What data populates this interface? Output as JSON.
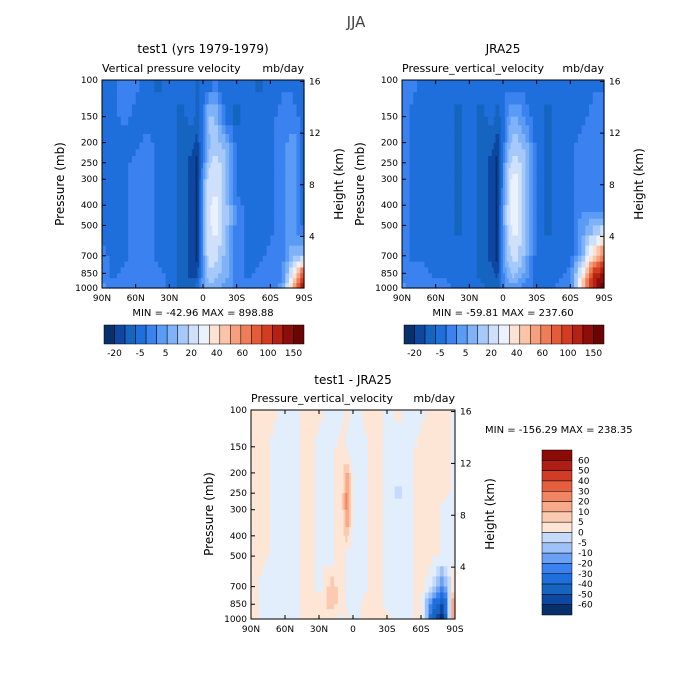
{
  "suptitle": "JJA",
  "cmap_abs": [
    "#08306b",
    "#0d47a1",
    "#1565c0",
    "#1e6fdc",
    "#3b82f0",
    "#5a9bf5",
    "#7fb2f7",
    "#a7c9fa",
    "#cfe0fb",
    "#ecf2fd",
    "#fde2d3",
    "#fbc3a8",
    "#f6a07f",
    "#ef7d57",
    "#e45b38",
    "#d23d22",
    "#b42214",
    "#8e0d0a",
    "#6a0505"
  ],
  "cmap_diff": [
    "#08306b",
    "#0d47a1",
    "#1565c0",
    "#1e6fdc",
    "#3b82f0",
    "#6ba1f5",
    "#9ec1f8",
    "#c6dbfb",
    "#e3eefd",
    "#fde6d6",
    "#fbcbb1",
    "#f7a98a",
    "#f08463",
    "#e55f3f",
    "#d03c24",
    "#ad1f14",
    "#8a0a08"
  ],
  "chart_data": [
    {
      "type": "heatmap",
      "id": "model",
      "title": "test1 (yrs 1979-1979)",
      "subtitle_left": "Vertical pressure velocity",
      "subtitle_right": "mb/day",
      "ylabel": "Pressure (mb)",
      "y2label": "Height (km)",
      "x_ticks": [
        "90N",
        "60N",
        "30N",
        "0",
        "30S",
        "60S",
        "90S"
      ],
      "y_ticks": [
        100,
        150,
        200,
        250,
        300,
        400,
        500,
        700,
        850,
        1000
      ],
      "y2_ticks": [
        16,
        12,
        8,
        4
      ],
      "stats": "MIN = -42.96   MAX = 898.88",
      "colorbar_labels": [
        "-20",
        "-5",
        "5",
        "20",
        "40",
        "60",
        "100",
        "150"
      ],
      "colormap": "abs",
      "field": {
        "lats": [
          90,
          80,
          70,
          60,
          50,
          40,
          30,
          20,
          10,
          5,
          0,
          -5,
          -10,
          -20,
          -30,
          -40,
          -50,
          -60,
          -70,
          -80,
          -90
        ],
        "levels": [
          100,
          150,
          200,
          250,
          300,
          400,
          500,
          700,
          850,
          1000
        ],
        "values": [
          [
            3,
            3,
            4,
            4,
            3,
            2,
            3,
            3,
            3,
            2,
            3,
            2,
            3,
            3,
            3,
            3,
            2,
            3,
            3,
            3,
            3
          ],
          [
            3,
            3,
            4,
            3,
            3,
            3,
            3,
            2,
            3,
            2,
            3,
            7,
            7,
            3,
            2,
            3,
            3,
            3,
            4,
            4,
            3
          ],
          [
            3,
            3,
            3,
            3,
            4,
            3,
            3,
            2,
            2,
            1,
            4,
            6,
            7,
            6,
            3,
            3,
            3,
            3,
            4,
            5,
            3
          ],
          [
            3,
            3,
            3,
            4,
            4,
            3,
            3,
            2,
            1,
            0,
            4,
            7,
            8,
            7,
            3,
            3,
            3,
            3,
            4,
            5,
            3
          ],
          [
            3,
            3,
            3,
            4,
            4,
            3,
            3,
            2,
            1,
            0,
            5,
            8,
            8,
            7,
            3,
            3,
            3,
            3,
            4,
            5,
            3
          ],
          [
            3,
            3,
            3,
            4,
            4,
            3,
            3,
            2,
            1,
            0,
            5,
            8,
            9,
            7,
            4,
            3,
            3,
            3,
            4,
            5,
            3
          ],
          [
            3,
            3,
            3,
            4,
            4,
            3,
            3,
            2,
            1,
            0,
            5,
            8,
            9,
            7,
            4,
            3,
            3,
            3,
            4,
            5,
            3
          ],
          [
            4,
            3,
            3,
            4,
            4,
            3,
            3,
            2,
            1,
            0,
            5,
            8,
            8,
            6,
            4,
            3,
            3,
            4,
            4,
            6,
            7
          ],
          [
            4,
            3,
            4,
            4,
            4,
            4,
            3,
            2,
            1,
            1,
            5,
            7,
            7,
            6,
            4,
            3,
            4,
            4,
            4,
            9,
            15
          ],
          [
            5,
            4,
            4,
            4,
            4,
            4,
            3,
            2,
            2,
            3,
            5,
            6,
            6,
            5,
            4,
            4,
            4,
            4,
            5,
            11,
            18
          ]
        ]
      }
    },
    {
      "type": "heatmap",
      "id": "obs",
      "title": "JRA25",
      "subtitle_left": "Pressure_vertical_velocity",
      "subtitle_right": "mb/day",
      "ylabel": "Pressure (mb)",
      "y2label": "Height (km)",
      "x_ticks": [
        "90N",
        "60N",
        "30N",
        "0",
        "30S",
        "60S",
        "90S"
      ],
      "y_ticks": [
        100,
        150,
        200,
        250,
        300,
        400,
        500,
        700,
        850,
        1000
      ],
      "y2_ticks": [
        16,
        12,
        8,
        4
      ],
      "stats": "MIN = -59.81   MAX = 237.60",
      "colorbar_labels": [
        "-20",
        "-5",
        "5",
        "20",
        "40",
        "60",
        "100",
        "150"
      ],
      "colormap": "abs",
      "field": {
        "lats": [
          90,
          80,
          70,
          60,
          50,
          40,
          30,
          20,
          10,
          5,
          0,
          -5,
          -10,
          -20,
          -30,
          -40,
          -50,
          -60,
          -70,
          -80,
          -90
        ],
        "levels": [
          100,
          150,
          200,
          250,
          300,
          400,
          500,
          700,
          850,
          1000
        ],
        "values": [
          [
            4,
            4,
            3,
            3,
            3,
            3,
            3,
            3,
            3,
            3,
            3,
            3,
            3,
            3,
            3,
            3,
            3,
            3,
            3,
            3,
            3
          ],
          [
            4,
            3,
            3,
            3,
            3,
            2,
            3,
            2,
            3,
            2,
            3,
            5,
            6,
            4,
            3,
            2,
            3,
            3,
            3,
            4,
            4
          ],
          [
            4,
            3,
            3,
            3,
            3,
            2,
            3,
            2,
            2,
            1,
            3,
            6,
            7,
            6,
            3,
            2,
            3,
            3,
            4,
            4,
            4
          ],
          [
            4,
            3,
            3,
            3,
            3,
            2,
            3,
            2,
            1,
            0,
            4,
            7,
            8,
            7,
            3,
            2,
            3,
            3,
            4,
            4,
            4
          ],
          [
            4,
            3,
            3,
            3,
            3,
            2,
            3,
            2,
            1,
            0,
            4,
            8,
            9,
            7,
            3,
            2,
            3,
            3,
            4,
            4,
            4
          ],
          [
            4,
            3,
            3,
            3,
            3,
            2,
            3,
            2,
            1,
            0,
            5,
            8,
            9,
            7,
            3,
            2,
            3,
            3,
            4,
            4,
            4
          ],
          [
            4,
            3,
            3,
            3,
            3,
            2,
            3,
            2,
            1,
            0,
            5,
            8,
            9,
            7,
            3,
            2,
            3,
            3,
            5,
            6,
            7
          ],
          [
            4,
            3,
            3,
            3,
            3,
            3,
            3,
            2,
            1,
            0,
            5,
            7,
            8,
            6,
            3,
            3,
            3,
            3,
            6,
            10,
            13
          ],
          [
            4,
            4,
            4,
            3,
            3,
            3,
            3,
            2,
            2,
            1,
            4,
            6,
            7,
            5,
            3,
            3,
            3,
            4,
            9,
            15,
            17
          ],
          [
            5,
            4,
            4,
            4,
            4,
            3,
            3,
            3,
            2,
            2,
            4,
            5,
            5,
            4,
            3,
            3,
            4,
            4,
            10,
            16,
            18
          ]
        ]
      }
    },
    {
      "type": "heatmap",
      "id": "diff",
      "title": "test1 - JRA25",
      "subtitle_left": "Pressure_vertical_velocity",
      "subtitle_right": "mb/day",
      "ylabel": "Pressure (mb)",
      "y2label": "Height (km)",
      "x_ticks": [
        "90N",
        "60N",
        "30N",
        "0",
        "30S",
        "60S",
        "90S"
      ],
      "y_ticks": [
        100,
        150,
        200,
        250,
        300,
        400,
        500,
        700,
        850,
        1000
      ],
      "y2_ticks": [
        16,
        12,
        8,
        4
      ],
      "stats": "MIN = -156.29   MAX = 238.35",
      "colorbar_labels": [
        "60",
        "50",
        "40",
        "30",
        "20",
        "10",
        "5",
        "0",
        "-5",
        "-10",
        "-20",
        "-30",
        "-40",
        "-50",
        "-60"
      ],
      "colormap": "diff",
      "field": {
        "lats": [
          90,
          80,
          70,
          60,
          50,
          40,
          30,
          20,
          10,
          5,
          0,
          -5,
          -10,
          -20,
          -30,
          -40,
          -50,
          -60,
          -70,
          -80,
          -90
        ],
        "levels": [
          100,
          150,
          200,
          250,
          300,
          400,
          500,
          700,
          850,
          1000
        ],
        "values": [
          [
            9,
            9,
            9,
            8,
            8,
            9,
            9,
            8,
            8,
            9,
            8,
            8,
            9,
            9,
            8,
            9,
            8,
            8,
            9,
            9,
            8
          ],
          [
            9,
            9,
            8,
            8,
            8,
            9,
            8,
            8,
            9,
            8,
            8,
            8,
            8,
            9,
            8,
            8,
            8,
            9,
            9,
            9,
            8
          ],
          [
            9,
            9,
            8,
            8,
            8,
            9,
            8,
            8,
            9,
            11,
            8,
            8,
            8,
            9,
            8,
            8,
            8,
            9,
            9,
            9,
            8
          ],
          [
            9,
            9,
            8,
            8,
            8,
            9,
            8,
            8,
            9,
            12,
            8,
            8,
            8,
            9,
            8,
            7,
            8,
            9,
            9,
            9,
            8
          ],
          [
            9,
            9,
            8,
            8,
            8,
            9,
            8,
            8,
            9,
            12,
            8,
            8,
            8,
            9,
            8,
            8,
            8,
            9,
            9,
            8,
            8
          ],
          [
            9,
            9,
            8,
            8,
            8,
            9,
            8,
            8,
            9,
            10,
            8,
            8,
            8,
            9,
            8,
            8,
            8,
            9,
            9,
            8,
            8
          ],
          [
            9,
            9,
            8,
            8,
            8,
            9,
            8,
            8,
            9,
            8,
            8,
            8,
            8,
            9,
            8,
            8,
            8,
            9,
            9,
            8,
            8
          ],
          [
            9,
            8,
            8,
            8,
            8,
            9,
            8,
            10,
            9,
            8,
            8,
            8,
            8,
            9,
            8,
            8,
            8,
            9,
            7,
            4,
            10
          ],
          [
            9,
            8,
            8,
            8,
            8,
            9,
            9,
            10,
            9,
            8,
            8,
            8,
            9,
            9,
            8,
            8,
            8,
            9,
            3,
            1,
            13
          ],
          [
            9,
            8,
            8,
            8,
            8,
            9,
            9,
            9,
            8,
            9,
            8,
            8,
            9,
            9,
            9,
            8,
            8,
            9,
            2,
            0,
            13
          ]
        ]
      }
    }
  ]
}
